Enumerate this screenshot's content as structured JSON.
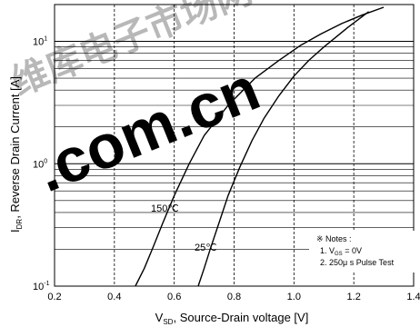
{
  "chart_data": {
    "type": "line",
    "title": "",
    "x_axis": {
      "min": 0.2,
      "max": 1.4,
      "ticks": [
        0.2,
        0.4,
        0.6,
        0.8,
        1.0,
        1.2,
        1.4
      ],
      "tick_labels": [
        "0.2",
        "0.4",
        "0.6",
        "0.8",
        "1.0",
        "1.2",
        "1.4"
      ],
      "grid": true
    },
    "y_axis": {
      "scale": "log",
      "min": 0.1,
      "max": 20,
      "major_ticks": [
        0.1,
        1,
        10
      ],
      "grid": true
    },
    "series": [
      {
        "name": "150℃",
        "x": [
          0.47,
          0.5,
          0.53,
          0.56,
          0.6,
          0.65,
          0.7,
          0.78,
          0.87,
          0.95,
          1.02,
          1.09,
          1.16,
          1.23,
          1.3
        ],
        "y": [
          0.1,
          0.14,
          0.21,
          0.32,
          0.55,
          1.0,
          1.7,
          3.0,
          5.0,
          7.0,
          9.2,
          11.5,
          14.0,
          16.5,
          19.0
        ]
      },
      {
        "name": "25℃",
        "x": [
          0.68,
          0.7,
          0.72,
          0.75,
          0.78,
          0.82,
          0.86,
          0.9,
          0.95,
          1.0,
          1.05,
          1.1,
          1.18,
          1.25
        ],
        "y": [
          0.1,
          0.14,
          0.2,
          0.33,
          0.55,
          0.95,
          1.55,
          2.35,
          3.6,
          5.2,
          7.0,
          9.0,
          13.0,
          17.5
        ]
      }
    ],
    "annotations": {
      "curve_label_1": "150℃",
      "curve_label_2": "25℃",
      "notes_title": "※ Notes :",
      "note_1_prefix": "1. V",
      "note_1_sub": "GS",
      "note_1_suffix": " = 0V",
      "note_2": "2. 250μ s Pulse Test"
    },
    "tick_text": {
      "y_0_1_base": "10",
      "y_0_1_exp": "-1",
      "y_1_base": "10",
      "y_1_exp": "0",
      "y_10_base": "10",
      "y_10_exp": "1"
    },
    "xlabel": {
      "prefix": "V",
      "sub": "SD",
      "suffix": ", Source-Drain voltage [V]"
    },
    "ylabel": {
      "prefix": "I",
      "sub": "DR",
      "suffix": ", Reverse Drain Current [A]"
    },
    "watermark": {
      "latin": ".com.cn",
      "cjk": "维库电子市场网",
      "color": "#e0201c"
    }
  }
}
